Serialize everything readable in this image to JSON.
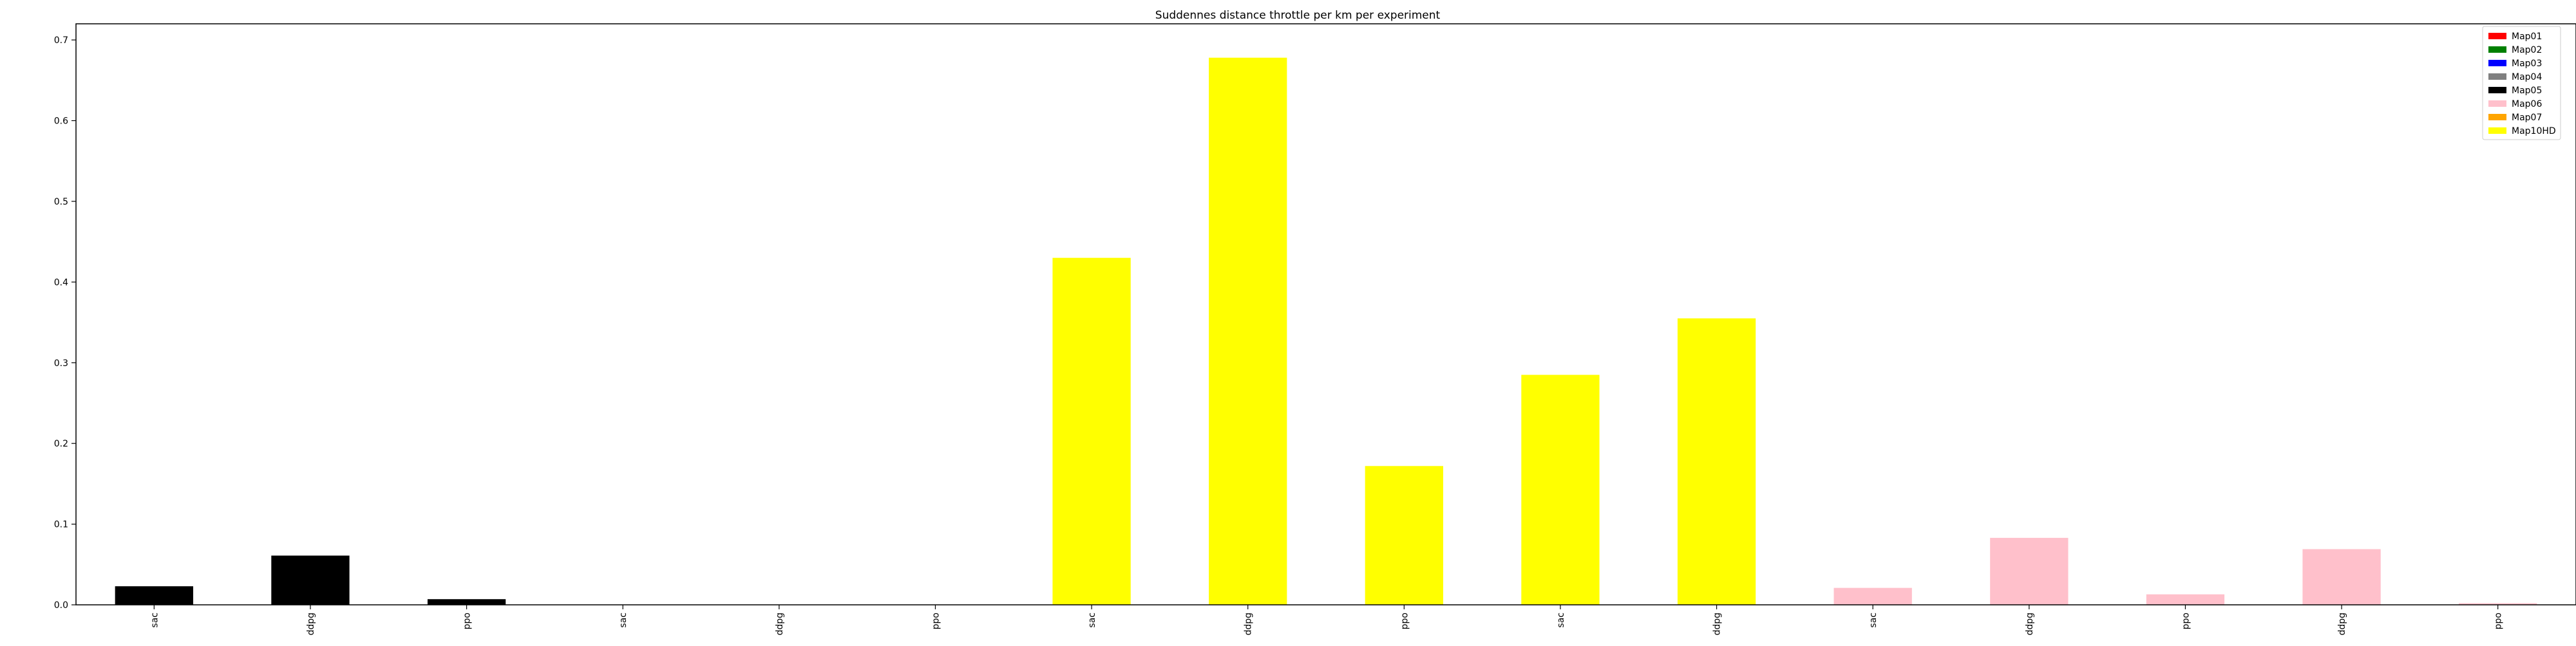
{
  "chart_data": {
    "type": "bar",
    "title": "Suddennes distance throttle per km per experiment",
    "xlabel": "",
    "ylabel": "",
    "ylim": [
      0,
      0.72
    ],
    "yticks": [
      0.0,
      0.1,
      0.2,
      0.3,
      0.4,
      0.5,
      0.6,
      0.7
    ],
    "ytick_labels": [
      "0.0",
      "0.1",
      "0.2",
      "0.3",
      "0.4",
      "0.5",
      "0.6",
      "0.7"
    ],
    "grid": false,
    "legend_position": "top-right",
    "legend": [
      {
        "name": "Map01",
        "color": "#ff0000"
      },
      {
        "name": "Map02",
        "color": "#008000"
      },
      {
        "name": "Map03",
        "color": "#0000ff"
      },
      {
        "name": "Map04",
        "color": "#808080"
      },
      {
        "name": "Map05",
        "color": "#000000"
      },
      {
        "name": "Map06",
        "color": "#ffc0cb"
      },
      {
        "name": "Map07",
        "color": "#ffa500"
      },
      {
        "name": "Map10HD",
        "color": "#ffff00"
      }
    ],
    "categories": [
      "sac",
      "ddpg",
      "ppo",
      "sac",
      "ddpg",
      "ppo",
      "sac",
      "ddpg",
      "ppo",
      "sac",
      "ddpg",
      "sac",
      "ddpg",
      "ppo",
      "ddpg",
      "ppo"
    ],
    "values": [
      0.023,
      0.061,
      0.007,
      0.0,
      0.0,
      0.0,
      0.43,
      0.678,
      0.172,
      0.285,
      0.355,
      0.021,
      0.083,
      0.013,
      0.069,
      0.002
    ],
    "bar_colors": [
      "#000000",
      "#000000",
      "#000000",
      "#ffffff",
      "#ffffff",
      "#ffffff",
      "#ffff00",
      "#ffff00",
      "#ffff00",
      "#ffff00",
      "#ffff00",
      "#ffc0cb",
      "#ffc0cb",
      "#ffc0cb",
      "#ffc0cb",
      "#ffc0cb"
    ]
  }
}
